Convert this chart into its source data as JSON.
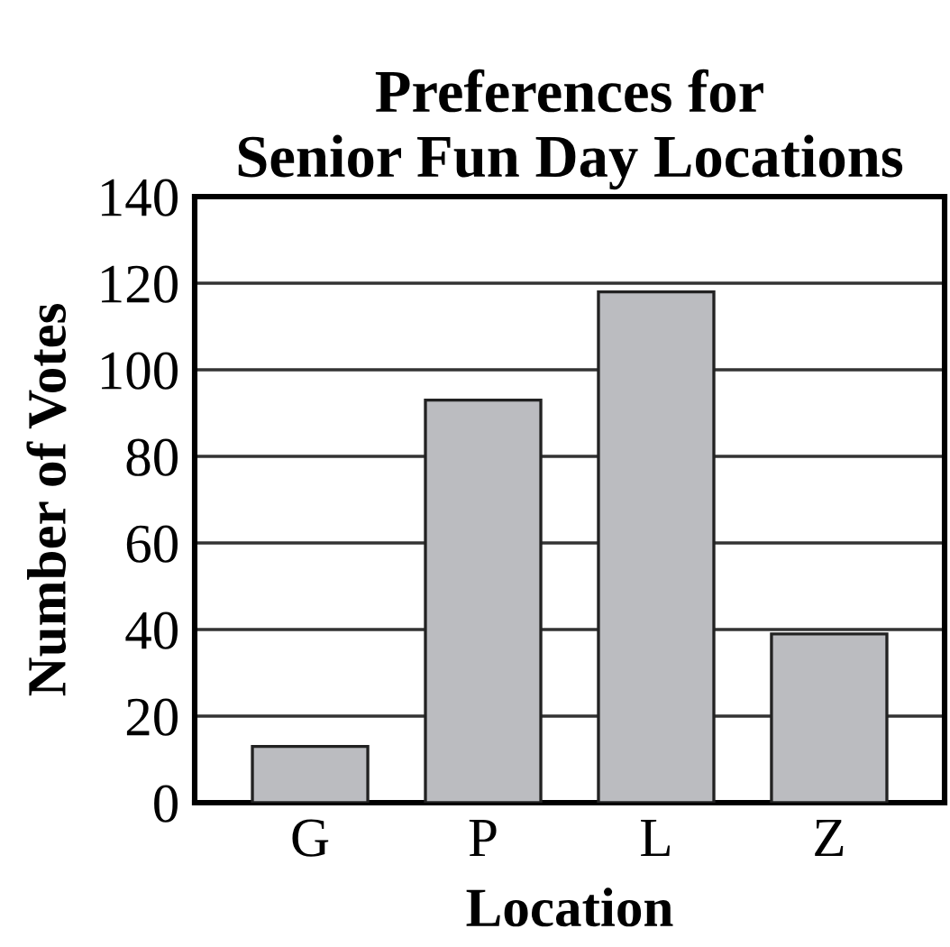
{
  "chart_data": {
    "type": "bar",
    "title": "Preferences for\nSenior Fun Day Locations",
    "xlabel": "Location",
    "ylabel": "Number of Votes",
    "categories": [
      "G",
      "P",
      "L",
      "Z"
    ],
    "values": [
      13,
      93,
      118,
      39
    ],
    "color": "#bbbcc0",
    "ylim": [
      0,
      140
    ],
    "yticks": [
      0,
      20,
      40,
      60,
      80,
      100,
      120,
      140
    ],
    "grid": "y",
    "legend": false
  }
}
